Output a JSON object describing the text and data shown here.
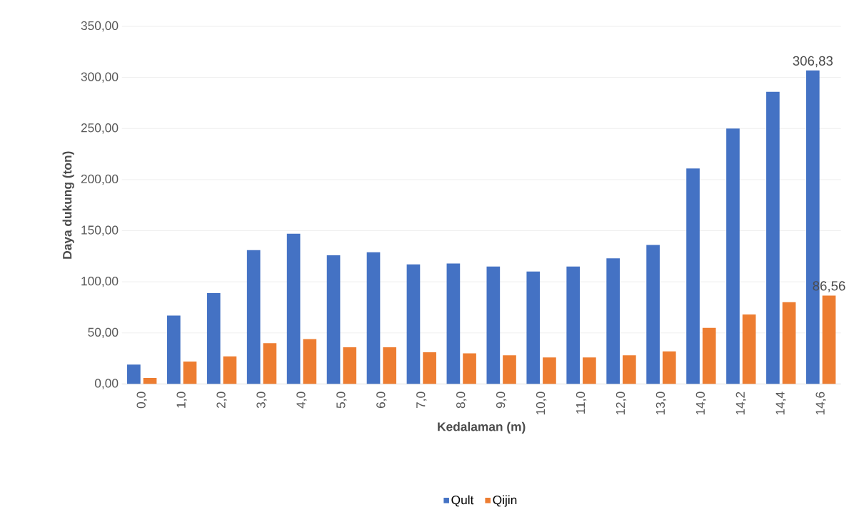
{
  "chart_data": {
    "type": "bar",
    "xlabel": "Kedalaman (m)",
    "ylabel": "Daya dukung (ton)",
    "categories": [
      "0,0",
      "1,0",
      "2,0",
      "3,0",
      "4,0",
      "5,0",
      "6,0",
      "7,0",
      "8,0",
      "9,0",
      "10,0",
      "11,0",
      "12,0",
      "13,0",
      "14,0",
      "14,2",
      "14,4",
      "14,6"
    ],
    "series": [
      {
        "name": "Qult",
        "color": "#4472c4",
        "values": [
          19,
          67,
          89,
          131,
          147,
          126,
          129,
          117,
          118,
          115,
          110,
          115,
          123,
          136,
          211,
          250,
          286,
          306.83
        ],
        "value_labels": [
          null,
          null,
          null,
          null,
          null,
          null,
          null,
          null,
          null,
          null,
          null,
          null,
          null,
          null,
          null,
          null,
          null,
          "306,83"
        ]
      },
      {
        "name": "Qijin",
        "color": "#ed7d31",
        "values": [
          6,
          22,
          27,
          40,
          44,
          36,
          36,
          31,
          30,
          28,
          26,
          26,
          28,
          32,
          55,
          68,
          80,
          86.56
        ],
        "value_labels": [
          null,
          null,
          null,
          null,
          null,
          null,
          null,
          null,
          null,
          null,
          null,
          null,
          null,
          null,
          null,
          null,
          null,
          "86,56"
        ]
      }
    ],
    "ylim": [
      0,
      350
    ],
    "yticks": [
      {
        "value": 0,
        "label": "0,00"
      },
      {
        "value": 50,
        "label": "50,00"
      },
      {
        "value": 100,
        "label": "100,00"
      },
      {
        "value": 150,
        "label": "150,00"
      },
      {
        "value": 200,
        "label": "200,00"
      },
      {
        "value": 250,
        "label": "250,00"
      },
      {
        "value": 300,
        "label": "300,00"
      },
      {
        "value": 350,
        "label": "350,00"
      }
    ],
    "grid": "y",
    "legend": "bottom"
  }
}
